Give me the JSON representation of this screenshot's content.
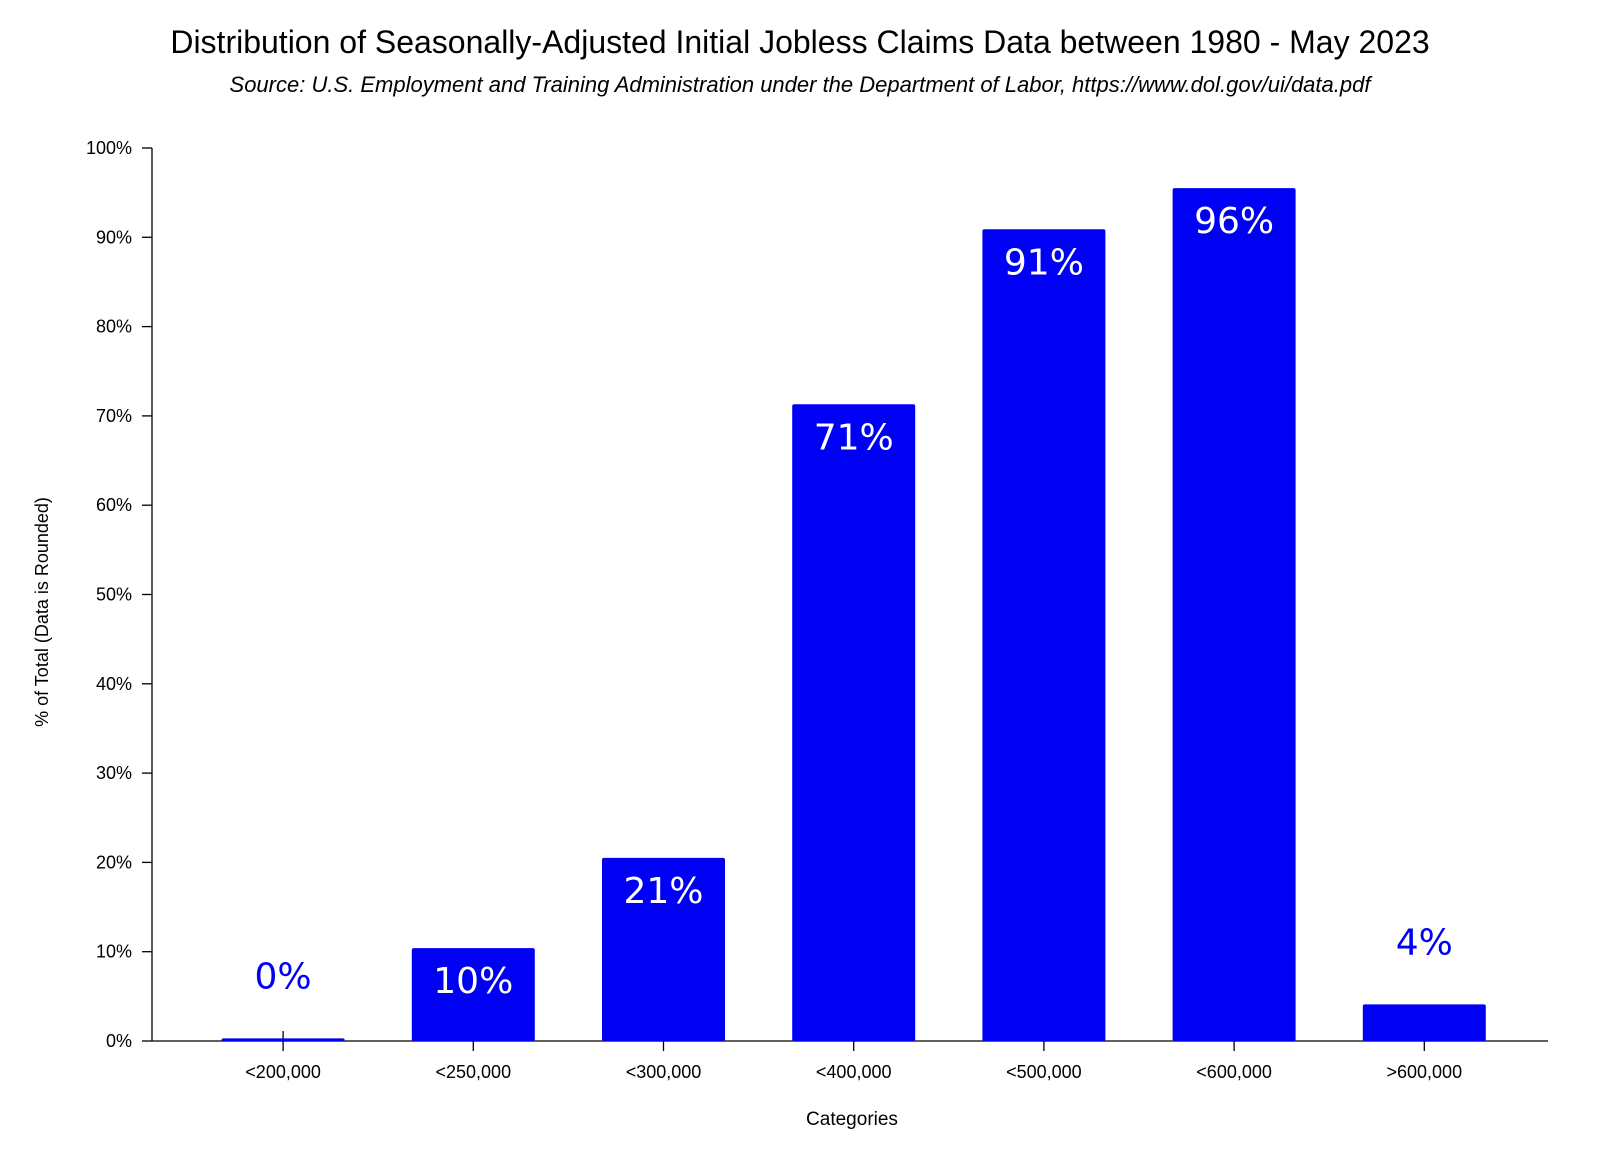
{
  "chart_data": {
    "type": "bar",
    "title": "Distribution of Seasonally-Adjusted Initial Jobless Claims Data between 1980 - May 2023",
    "subtitle": "Source: U.S. Employment and Training Administration under the Department of Labor, https://www.dol.gov/ui/data.pdf",
    "xlabel": "Categories",
    "ylabel": "% of Total (Data is Rounded)",
    "categories": [
      "<200,000",
      "<250,000",
      "<300,000",
      "<400,000",
      "<500,000",
      "<600,000",
      ">600,000"
    ],
    "values": [
      0.3,
      10.4,
      20.5,
      71.3,
      90.9,
      95.5,
      4.1
    ],
    "data_labels": [
      "0%",
      "10%",
      "21%",
      "71%",
      "91%",
      "96%",
      "4%"
    ],
    "ylim": [
      0,
      100
    ],
    "yticks": [
      0,
      10,
      20,
      30,
      40,
      50,
      60,
      70,
      80,
      90,
      100
    ],
    "ytick_labels": [
      "0%",
      "10%",
      "20%",
      "30%",
      "40%",
      "50%",
      "60%",
      "70%",
      "80%",
      "90%",
      "100%"
    ],
    "grid": false,
    "bar_color": "#0000f5",
    "inside_label_color": "#ffffff"
  }
}
